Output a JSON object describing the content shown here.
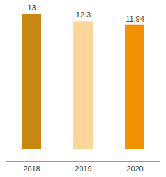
{
  "chart_data": {
    "type": "bar",
    "categories": [
      "2018",
      "2019",
      "2020"
    ],
    "values": [
      13,
      12.3,
      11.94
    ],
    "colors": [
      "#C8870F",
      "#FDD59A",
      "#F39200"
    ],
    "ylim": [
      0,
      13
    ],
    "data_labels": true,
    "tick_labels": "x"
  }
}
